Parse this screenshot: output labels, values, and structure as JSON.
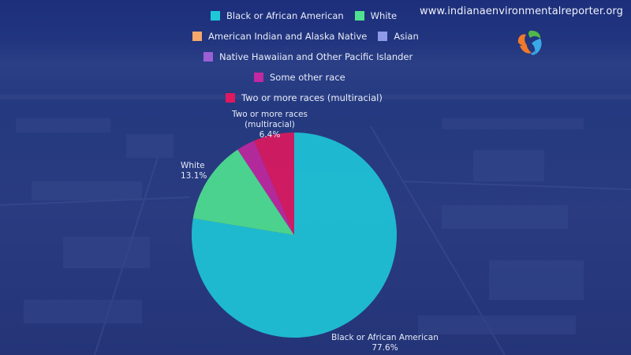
{
  "site": {
    "url": "www.indianaenvironmentalreporter.org",
    "logo": "iem-swirl-logo"
  },
  "legend": {
    "rows": [
      [
        {
          "label": "Black or African American",
          "color": "#1ec8d8"
        },
        {
          "label": "White",
          "color": "#4fe38f"
        }
      ],
      [
        {
          "label": "American Indian and Alaska Native",
          "color": "#f5a86b"
        },
        {
          "label": "Asian",
          "color": "#8d9ae8"
        }
      ],
      [
        {
          "label": "Native Hawaiian and Other Pacific Islander",
          "color": "#9b5fd6"
        }
      ],
      [
        {
          "label": "Some other race",
          "color": "#c2289f"
        }
      ],
      [
        {
          "label": "Two or more races (multiracial)",
          "color": "#e0185e"
        }
      ]
    ]
  },
  "labels": {
    "black": {
      "name": "Black or African American",
      "pct": "77.6%"
    },
    "white": {
      "name": "White",
      "pct": "13.1%"
    },
    "multi": {
      "name": "Two or more races (multiracial)",
      "pct": "6.4%"
    }
  },
  "chart_data": {
    "type": "pie",
    "title": "",
    "categories": [
      "Black or African American",
      "White",
      "American Indian and Alaska Native",
      "Asian",
      "Native Hawaiian and Other Pacific Islander",
      "Some other race",
      "Two or more races (multiracial)"
    ],
    "values": [
      77.6,
      13.1,
      0.0,
      0.0,
      0.0,
      2.9,
      6.4
    ],
    "colors": [
      "#1ec8d8",
      "#4fe38f",
      "#f5a86b",
      "#8d9ae8",
      "#9b5fd6",
      "#c2289f",
      "#e0185e"
    ],
    "data_labels": [
      {
        "category": "Black or African American",
        "text": "77.6%"
      },
      {
        "category": "White",
        "text": "13.1%"
      },
      {
        "category": "Two or more races (multiracial)",
        "text": "6.4%"
      }
    ],
    "start_angle_deg": 0,
    "direction": "clockwise",
    "legend_position": "top",
    "center": [
      373,
      298
    ],
    "radius": 130
  }
}
